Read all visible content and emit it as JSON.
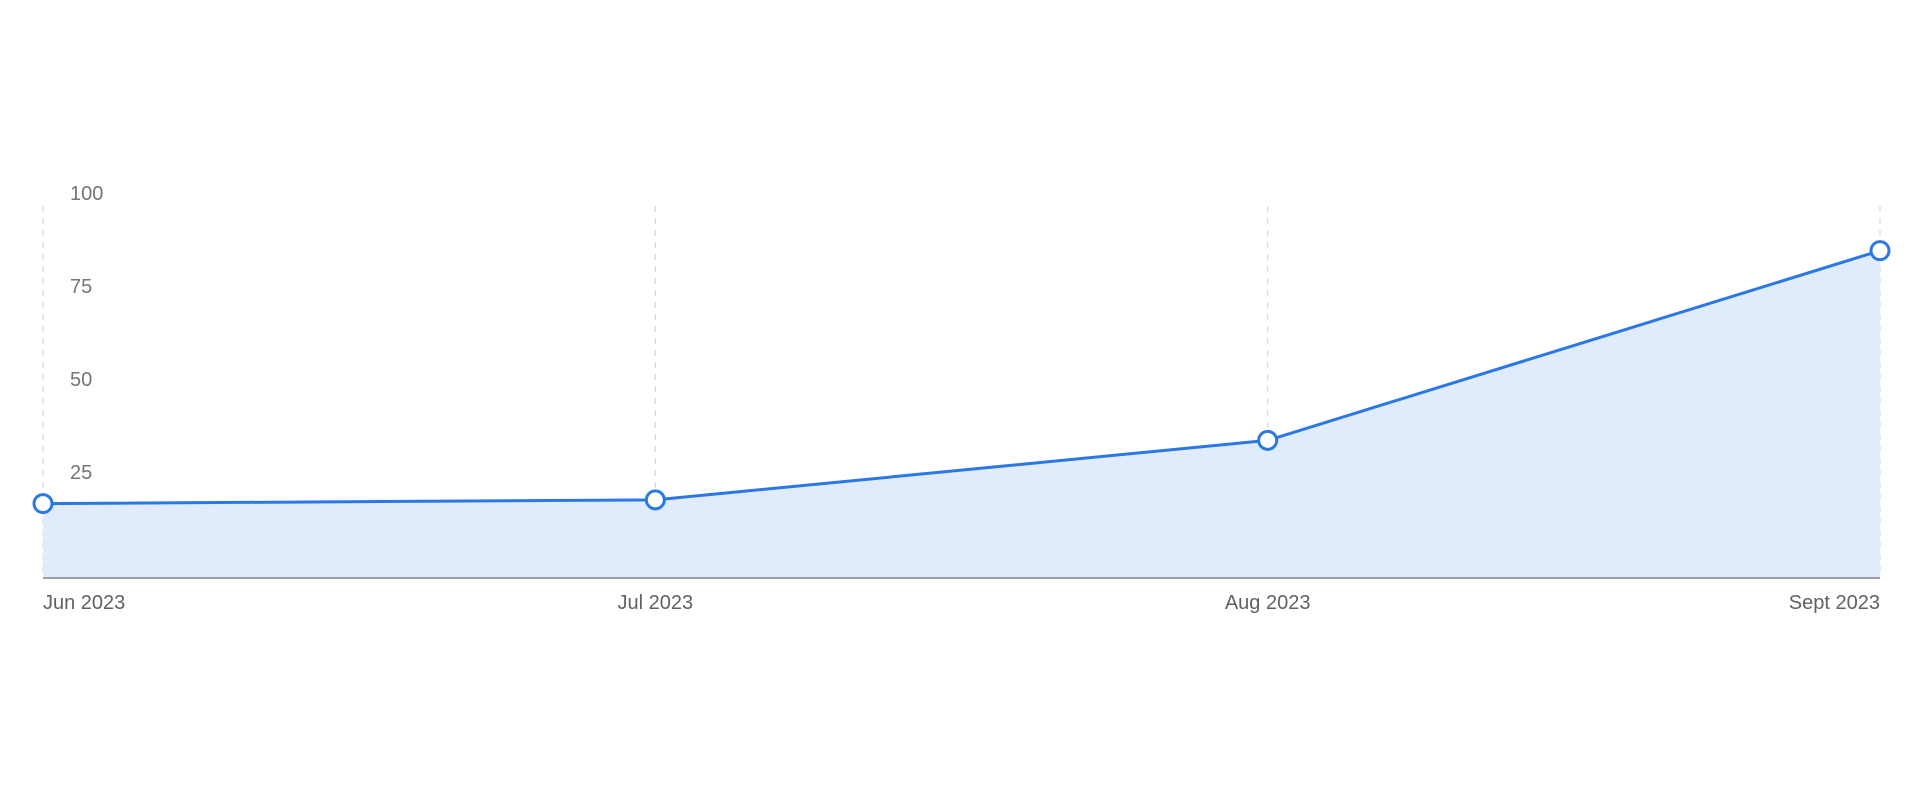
{
  "chart_data": {
    "type": "area",
    "categories": [
      "Jun 2023",
      "Jul 2023",
      "Aug 2023",
      "Sept 2023"
    ],
    "series": [
      {
        "values": [
          20,
          21,
          37,
          88
        ]
      }
    ],
    "yticks": [
      "25",
      "50",
      "75",
      "100"
    ],
    "ylim": [
      0,
      100
    ],
    "grid": "vertical-dashed",
    "legend": "none",
    "colors": {
      "line": "#2b78e4",
      "fill": "#e0ecfc",
      "point_fill": "#ffffff"
    }
  }
}
